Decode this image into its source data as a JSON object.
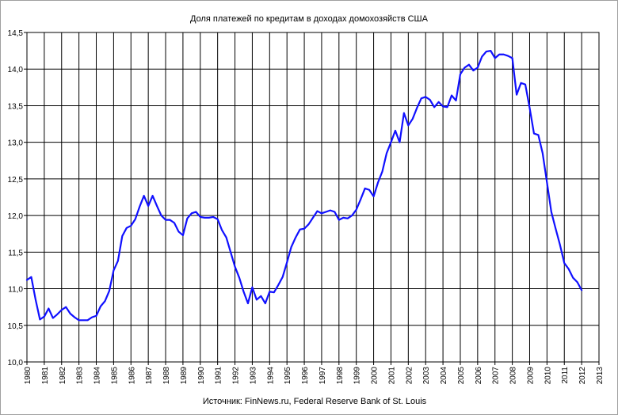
{
  "chart_data": {
    "type": "line",
    "title": "Доля платежей по кредитам в доходах домохозяйств США",
    "source": "Источник: FinNews.ru, Federal Reserve Bank of St. Louis",
    "xlim": [
      1980,
      2013
    ],
    "ylim": [
      10.0,
      14.5
    ],
    "y_ticks": [
      "10,0",
      "10,5",
      "11,0",
      "11,5",
      "12,0",
      "12,5",
      "13,0",
      "13,5",
      "14,0",
      "14,5"
    ],
    "x_ticks": [
      "1980",
      "1981",
      "1982",
      "1983",
      "1984",
      "1985",
      "1986",
      "1987",
      "1988",
      "1989",
      "1990",
      "1991",
      "1992",
      "1993",
      "1994",
      "1995",
      "1996",
      "1997",
      "1998",
      "1999",
      "2000",
      "2001",
      "2002",
      "2003",
      "2004",
      "2005",
      "2006",
      "2007",
      "2008",
      "2009",
      "2010",
      "2011",
      "2012",
      "2013"
    ],
    "grid": true,
    "line_color": "#1010ff",
    "series": [
      {
        "points": [
          [
            1980.0,
            11.12
          ],
          [
            1980.25,
            11.16
          ],
          [
            1980.5,
            10.85
          ],
          [
            1980.75,
            10.58
          ],
          [
            1981.0,
            10.62
          ],
          [
            1981.25,
            10.73
          ],
          [
            1981.5,
            10.6
          ],
          [
            1981.75,
            10.65
          ],
          [
            1982.0,
            10.71
          ],
          [
            1982.25,
            10.75
          ],
          [
            1982.5,
            10.66
          ],
          [
            1982.75,
            10.61
          ],
          [
            1983.0,
            10.57
          ],
          [
            1983.25,
            10.57
          ],
          [
            1983.5,
            10.57
          ],
          [
            1983.75,
            10.61
          ],
          [
            1984.0,
            10.63
          ],
          [
            1984.25,
            10.76
          ],
          [
            1984.5,
            10.83
          ],
          [
            1984.75,
            10.97
          ],
          [
            1985.0,
            11.25
          ],
          [
            1985.25,
            11.38
          ],
          [
            1985.5,
            11.72
          ],
          [
            1985.75,
            11.83
          ],
          [
            1986.0,
            11.86
          ],
          [
            1986.25,
            11.95
          ],
          [
            1986.5,
            12.12
          ],
          [
            1986.75,
            12.27
          ],
          [
            1987.0,
            12.13
          ],
          [
            1987.25,
            12.27
          ],
          [
            1987.5,
            12.13
          ],
          [
            1987.75,
            12.0
          ],
          [
            1988.0,
            11.94
          ],
          [
            1988.25,
            11.94
          ],
          [
            1988.5,
            11.9
          ],
          [
            1988.75,
            11.78
          ],
          [
            1989.0,
            11.73
          ],
          [
            1989.25,
            11.96
          ],
          [
            1989.5,
            12.03
          ],
          [
            1989.75,
            12.05
          ],
          [
            1990.0,
            11.98
          ],
          [
            1990.25,
            11.97
          ],
          [
            1990.5,
            11.97
          ],
          [
            1990.75,
            11.98
          ],
          [
            1991.0,
            11.95
          ],
          [
            1991.25,
            11.8
          ],
          [
            1991.5,
            11.7
          ],
          [
            1991.75,
            11.5
          ],
          [
            1992.0,
            11.3
          ],
          [
            1992.25,
            11.15
          ],
          [
            1992.5,
            10.96
          ],
          [
            1992.75,
            10.8
          ],
          [
            1993.0,
            11.02
          ],
          [
            1993.25,
            10.85
          ],
          [
            1993.5,
            10.9
          ],
          [
            1993.75,
            10.8
          ],
          [
            1994.0,
            10.96
          ],
          [
            1994.25,
            10.95
          ],
          [
            1994.5,
            11.05
          ],
          [
            1994.75,
            11.16
          ],
          [
            1995.0,
            11.36
          ],
          [
            1995.25,
            11.57
          ],
          [
            1995.5,
            11.7
          ],
          [
            1995.75,
            11.81
          ],
          [
            1996.0,
            11.82
          ],
          [
            1996.25,
            11.88
          ],
          [
            1996.5,
            11.97
          ],
          [
            1996.75,
            12.06
          ],
          [
            1997.0,
            12.03
          ],
          [
            1997.25,
            12.05
          ],
          [
            1997.5,
            12.07
          ],
          [
            1997.75,
            12.05
          ],
          [
            1998.0,
            11.94
          ],
          [
            1998.25,
            11.97
          ],
          [
            1998.5,
            11.96
          ],
          [
            1998.75,
            12.0
          ],
          [
            1999.0,
            12.08
          ],
          [
            1999.25,
            12.22
          ],
          [
            1999.5,
            12.37
          ],
          [
            1999.75,
            12.35
          ],
          [
            2000.0,
            12.26
          ],
          [
            2000.25,
            12.45
          ],
          [
            2000.5,
            12.6
          ],
          [
            2000.75,
            12.85
          ],
          [
            2001.0,
            13.0
          ],
          [
            2001.25,
            13.16
          ],
          [
            2001.5,
            13.0
          ],
          [
            2001.75,
            13.4
          ],
          [
            2002.0,
            13.23
          ],
          [
            2002.25,
            13.32
          ],
          [
            2002.5,
            13.47
          ],
          [
            2002.75,
            13.6
          ],
          [
            2003.0,
            13.62
          ],
          [
            2003.25,
            13.58
          ],
          [
            2003.5,
            13.48
          ],
          [
            2003.75,
            13.55
          ],
          [
            2004.0,
            13.49
          ],
          [
            2004.25,
            13.48
          ],
          [
            2004.5,
            13.64
          ],
          [
            2004.75,
            13.57
          ],
          [
            2005.0,
            13.93
          ],
          [
            2005.25,
            14.02
          ],
          [
            2005.5,
            14.06
          ],
          [
            2005.75,
            13.98
          ],
          [
            2006.0,
            14.02
          ],
          [
            2006.25,
            14.17
          ],
          [
            2006.5,
            14.24
          ],
          [
            2006.75,
            14.25
          ],
          [
            2007.0,
            14.15
          ],
          [
            2007.25,
            14.2
          ],
          [
            2007.5,
            14.2
          ],
          [
            2007.75,
            14.18
          ],
          [
            2008.0,
            14.15
          ],
          [
            2008.25,
            13.65
          ],
          [
            2008.5,
            13.81
          ],
          [
            2008.75,
            13.79
          ],
          [
            2009.0,
            13.47
          ],
          [
            2009.25,
            13.12
          ],
          [
            2009.5,
            13.1
          ],
          [
            2009.75,
            12.85
          ],
          [
            2010.0,
            12.45
          ],
          [
            2010.25,
            12.05
          ],
          [
            2010.5,
            11.82
          ],
          [
            2010.75,
            11.6
          ],
          [
            2011.0,
            11.35
          ],
          [
            2011.25,
            11.27
          ],
          [
            2011.5,
            11.15
          ],
          [
            2011.75,
            11.09
          ],
          [
            2012.0,
            10.98
          ]
        ]
      }
    ]
  }
}
